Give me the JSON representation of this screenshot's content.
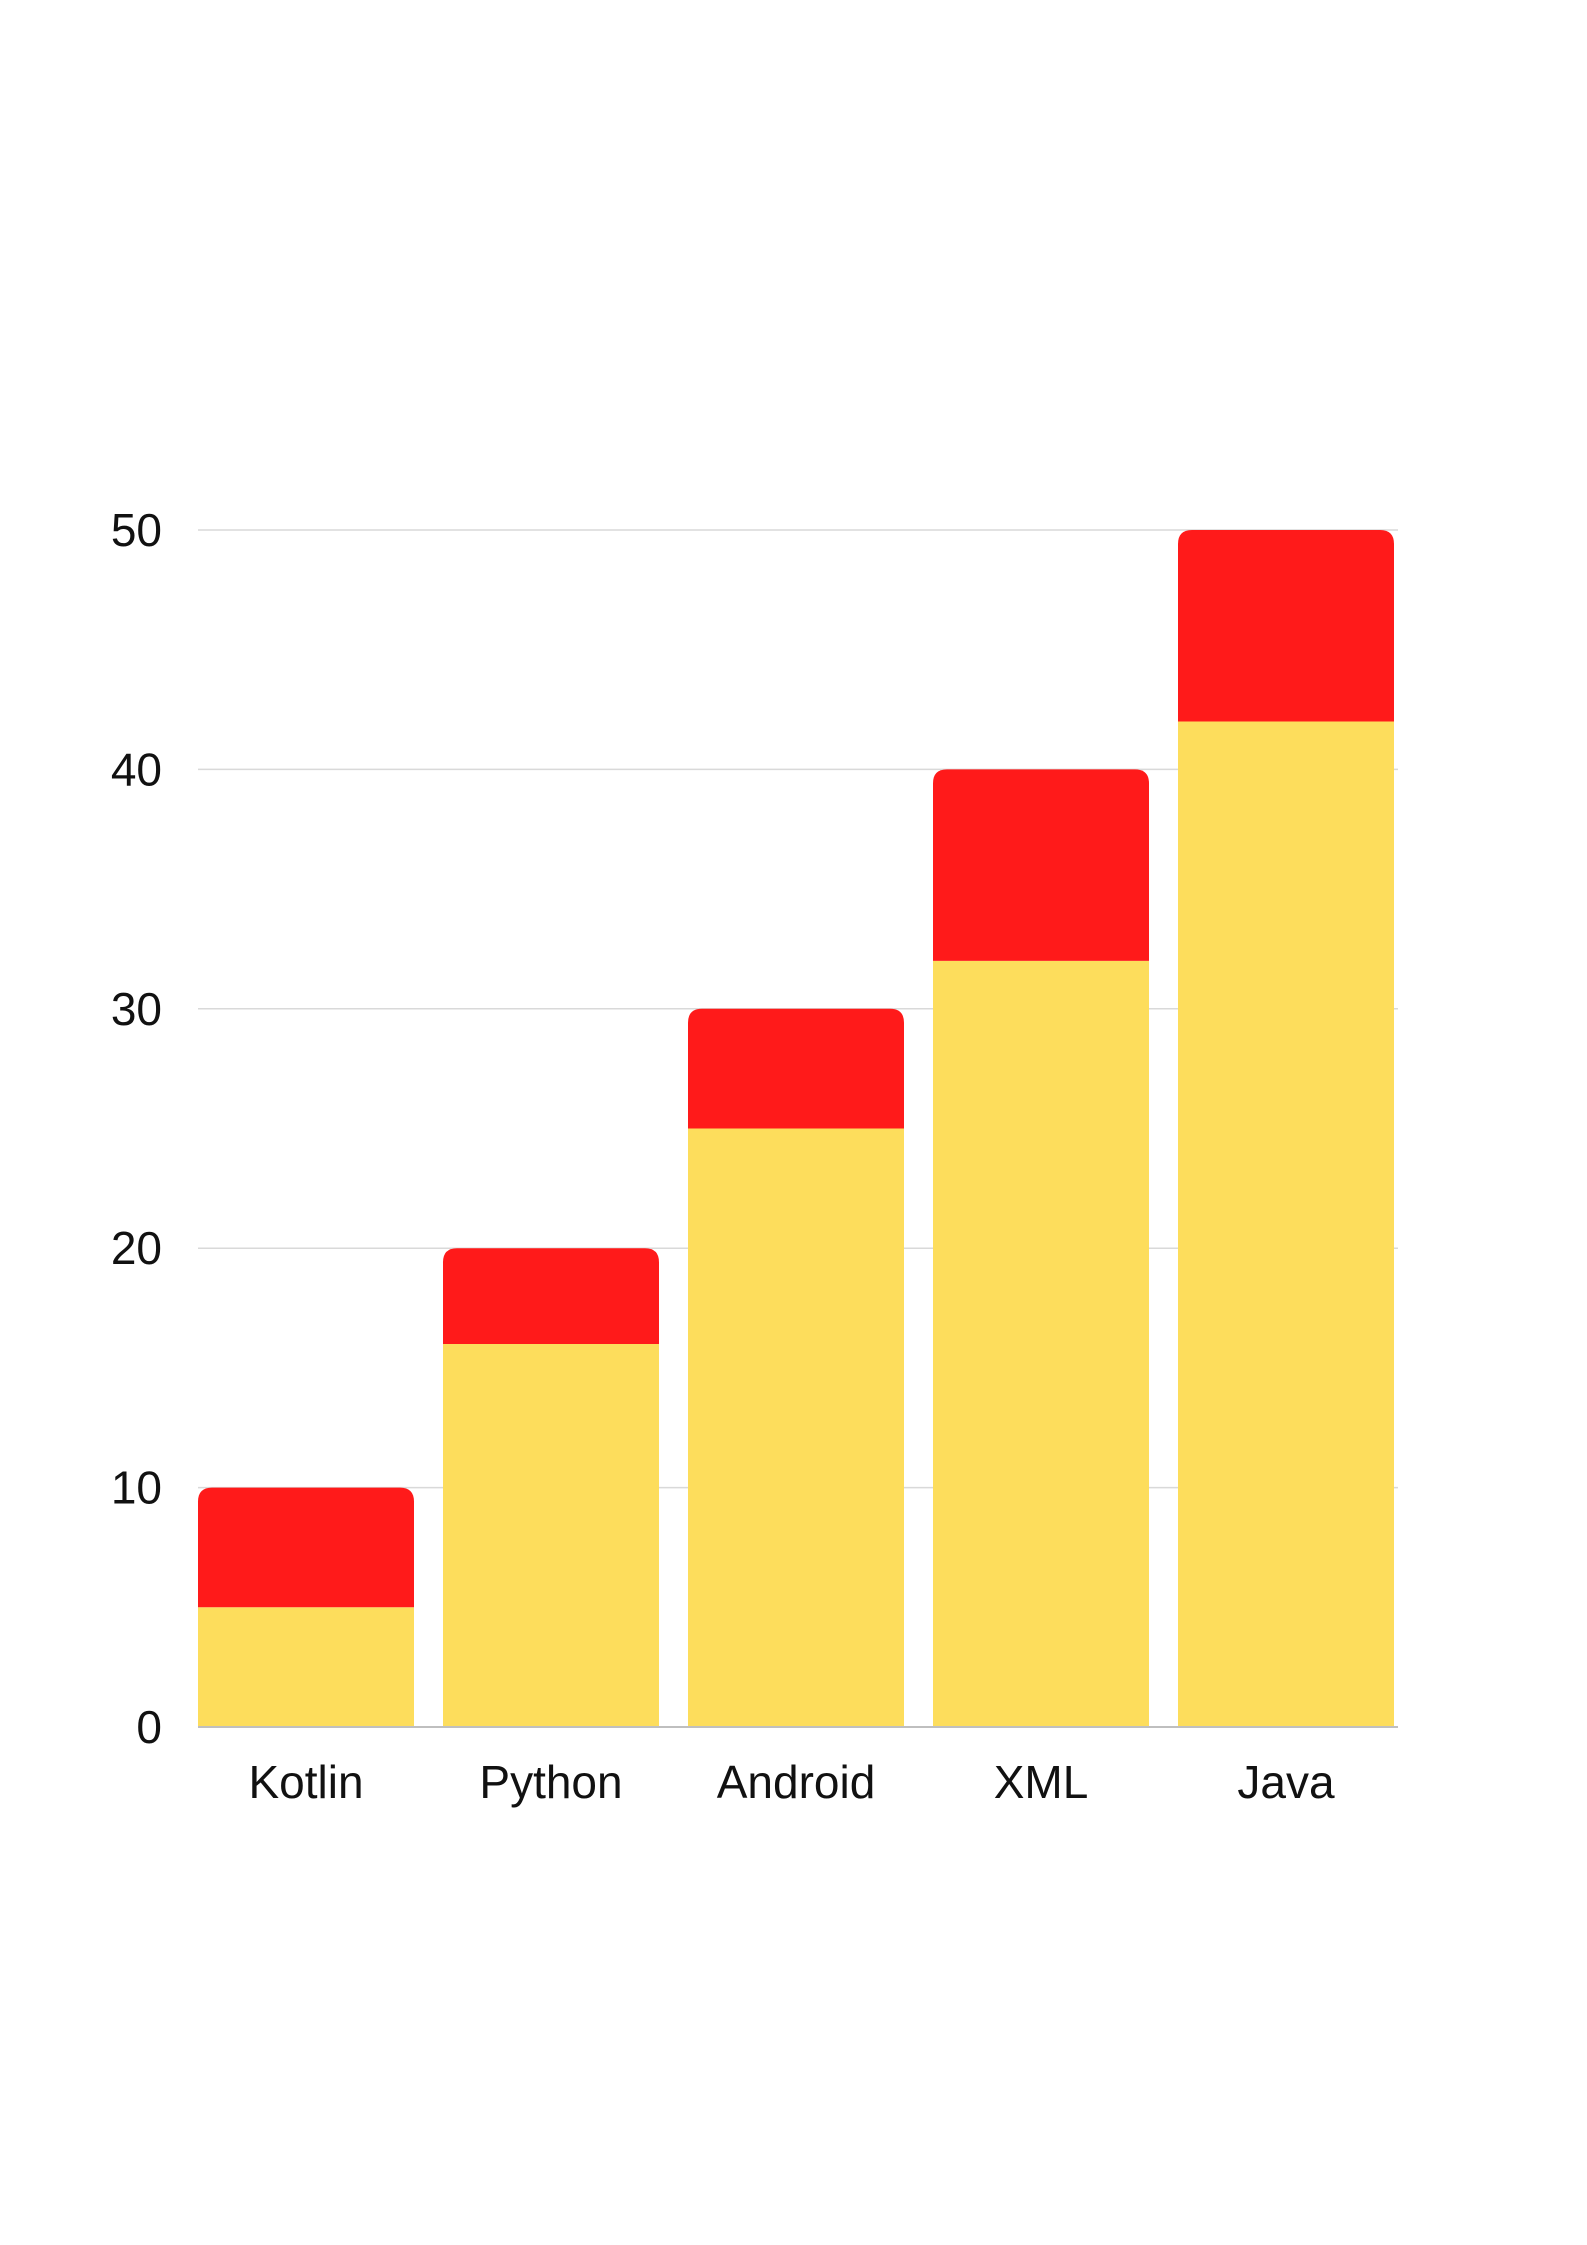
{
  "chart_data": {
    "type": "bar",
    "stacked": true,
    "title": "",
    "xlabel": "",
    "ylabel": "",
    "categories": [
      "Kotlin",
      "Python",
      "Android",
      "XML",
      "Java"
    ],
    "series": [
      {
        "values": [
          5,
          16,
          25,
          32,
          42
        ],
        "color": "#FDDD5C"
      },
      {
        "values": [
          5,
          4,
          5,
          8,
          8
        ],
        "color": "#FF1A1A"
      }
    ],
    "ylim": [
      0,
      50
    ],
    "yticks": [
      "0",
      "10",
      "20",
      "30",
      "40",
      "50"
    ],
    "grid": true,
    "legend": "none",
    "colors": {
      "grid": "#D9D9D9",
      "axis": "#BFBFBF",
      "text": "#111111",
      "background": "#FFFFFF"
    }
  }
}
